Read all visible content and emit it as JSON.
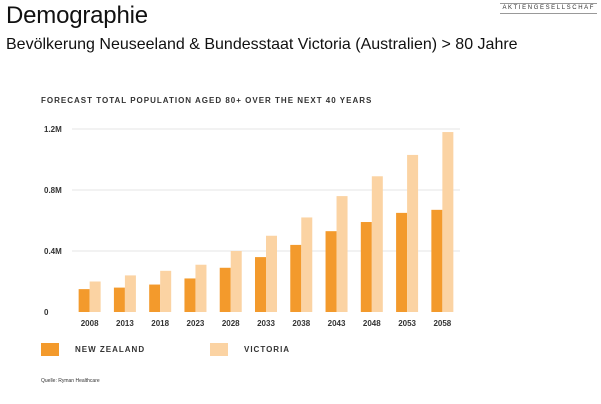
{
  "slide": {
    "title": "Demographie",
    "subtitle": "Bevölkerung Neuseeland & Bundesstaat Victoria (Australien) > 80 Jahre",
    "logo_text": "AKTIENGESELLSCHAF",
    "source": "Quelle: Ryman Healthcare"
  },
  "colors": {
    "new_zealand": "#F39A2C",
    "victoria": "#FBD3A3",
    "grid": "#E6E6E6"
  },
  "chart_data": {
    "type": "bar",
    "title": "FORECAST TOTAL POPULATION AGED 80+ OVER THE NEXT 40 YEARS",
    "categories": [
      "2008",
      "2013",
      "2018",
      "2023",
      "2028",
      "2033",
      "2038",
      "2043",
      "2048",
      "2053",
      "2058"
    ],
    "series": [
      {
        "name": "NEW ZEALAND",
        "values": [
          0.15,
          0.16,
          0.18,
          0.22,
          0.29,
          0.36,
          0.44,
          0.53,
          0.59,
          0.65,
          0.67
        ]
      },
      {
        "name": "VICTORIA",
        "values": [
          0.2,
          0.24,
          0.27,
          0.31,
          0.4,
          0.5,
          0.62,
          0.76,
          0.89,
          1.03,
          1.18
        ]
      }
    ],
    "y_ticks": [
      {
        "value": 0,
        "label": "0"
      },
      {
        "value": 0.4,
        "label": "0.4M"
      },
      {
        "value": 0.8,
        "label": "0.8M"
      },
      {
        "value": 1.2,
        "label": "1.2M"
      }
    ],
    "ylim": [
      0,
      1.2
    ],
    "unit": "M",
    "grid": true,
    "legend_position": "bottom"
  }
}
